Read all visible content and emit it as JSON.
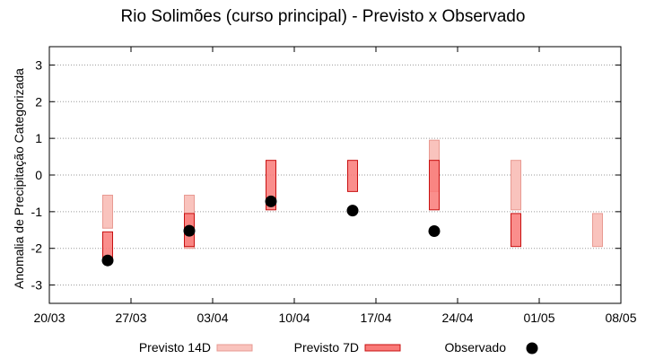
{
  "chart_data": {
    "type": "range-bar",
    "title": "Rio Solimões (curso principal) - Previsto x Observado",
    "xlabel": "",
    "ylabel": "Anomalia de Precipitação Categorizada",
    "x_ticks": [
      "20/03",
      "27/03",
      "03/04",
      "10/04",
      "17/04",
      "24/04",
      "01/05",
      "08/05"
    ],
    "xlim": [
      "2025-03-20",
      "2025-05-08"
    ],
    "ylim": [
      -3.5,
      3.5
    ],
    "y_ticks": [
      -3,
      -2,
      -1,
      0,
      1,
      2,
      3
    ],
    "grid": true,
    "legend_position": "bottom",
    "series": [
      {
        "name": "Previsto 14D",
        "color": "#f9c3bd",
        "edge": "#e89a92",
        "points": [
          {
            "date": "2025-03-25",
            "low": -1.45,
            "high": -0.55
          },
          {
            "date": "2025-04-01",
            "low": -2.0,
            "high": -0.55
          },
          {
            "date": "2025-04-22",
            "low": -0.45,
            "high": 0.95
          },
          {
            "date": "2025-04-29",
            "low": -0.95,
            "high": 0.4
          },
          {
            "date": "2025-05-06",
            "low": -1.95,
            "high": -1.05
          }
        ]
      },
      {
        "name": "Previsto 7D",
        "color": "#f97a78",
        "edge": "#c81010",
        "points": [
          {
            "date": "2025-03-25",
            "low": -2.3,
            "high": -1.55
          },
          {
            "date": "2025-04-01",
            "low": -1.95,
            "high": -1.05
          },
          {
            "date": "2025-04-08",
            "low": -0.95,
            "high": 0.4
          },
          {
            "date": "2025-04-15",
            "low": -0.45,
            "high": 0.4
          },
          {
            "date": "2025-04-22",
            "low": -0.95,
            "high": 0.4
          },
          {
            "date": "2025-04-29",
            "low": -1.95,
            "high": -1.05
          }
        ]
      },
      {
        "name": "Observado",
        "color": "#000000",
        "points": [
          {
            "date": "2025-03-25",
            "value": -2.33
          },
          {
            "date": "2025-04-01",
            "value": -1.52
          },
          {
            "date": "2025-04-08",
            "value": -0.72
          },
          {
            "date": "2025-04-15",
            "value": -0.97
          },
          {
            "date": "2025-04-22",
            "value": -1.53
          }
        ]
      }
    ]
  }
}
